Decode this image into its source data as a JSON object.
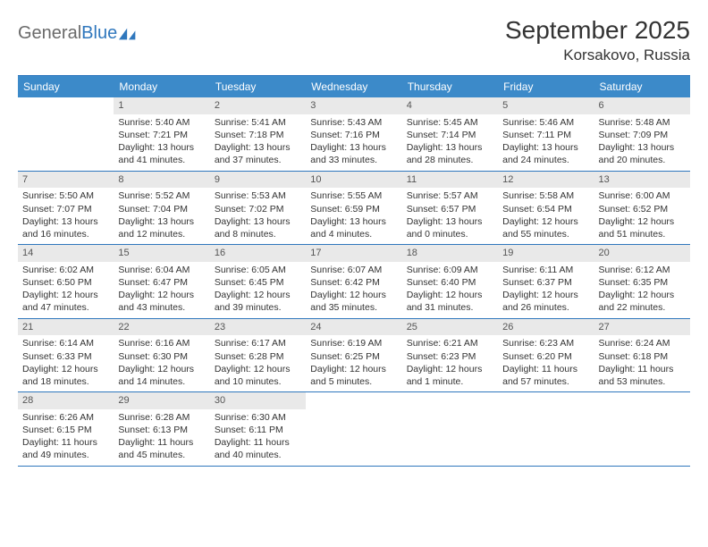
{
  "logo": {
    "part1": "General",
    "part2": "Blue"
  },
  "title": "September 2025",
  "location": "Korsakovo, Russia",
  "colors": {
    "accent": "#3c8ac9",
    "border": "#2f77bd",
    "daynum_bg": "#e9e9e9"
  },
  "dow": [
    "Sunday",
    "Monday",
    "Tuesday",
    "Wednesday",
    "Thursday",
    "Friday",
    "Saturday"
  ],
  "weeks": [
    [
      null,
      {
        "n": "1",
        "sr": "Sunrise: 5:40 AM",
        "ss": "Sunset: 7:21 PM",
        "d1": "Daylight: 13 hours",
        "d2": "and 41 minutes."
      },
      {
        "n": "2",
        "sr": "Sunrise: 5:41 AM",
        "ss": "Sunset: 7:18 PM",
        "d1": "Daylight: 13 hours",
        "d2": "and 37 minutes."
      },
      {
        "n": "3",
        "sr": "Sunrise: 5:43 AM",
        "ss": "Sunset: 7:16 PM",
        "d1": "Daylight: 13 hours",
        "d2": "and 33 minutes."
      },
      {
        "n": "4",
        "sr": "Sunrise: 5:45 AM",
        "ss": "Sunset: 7:14 PM",
        "d1": "Daylight: 13 hours",
        "d2": "and 28 minutes."
      },
      {
        "n": "5",
        "sr": "Sunrise: 5:46 AM",
        "ss": "Sunset: 7:11 PM",
        "d1": "Daylight: 13 hours",
        "d2": "and 24 minutes."
      },
      {
        "n": "6",
        "sr": "Sunrise: 5:48 AM",
        "ss": "Sunset: 7:09 PM",
        "d1": "Daylight: 13 hours",
        "d2": "and 20 minutes."
      }
    ],
    [
      {
        "n": "7",
        "sr": "Sunrise: 5:50 AM",
        "ss": "Sunset: 7:07 PM",
        "d1": "Daylight: 13 hours",
        "d2": "and 16 minutes."
      },
      {
        "n": "8",
        "sr": "Sunrise: 5:52 AM",
        "ss": "Sunset: 7:04 PM",
        "d1": "Daylight: 13 hours",
        "d2": "and 12 minutes."
      },
      {
        "n": "9",
        "sr": "Sunrise: 5:53 AM",
        "ss": "Sunset: 7:02 PM",
        "d1": "Daylight: 13 hours",
        "d2": "and 8 minutes."
      },
      {
        "n": "10",
        "sr": "Sunrise: 5:55 AM",
        "ss": "Sunset: 6:59 PM",
        "d1": "Daylight: 13 hours",
        "d2": "and 4 minutes."
      },
      {
        "n": "11",
        "sr": "Sunrise: 5:57 AM",
        "ss": "Sunset: 6:57 PM",
        "d1": "Daylight: 13 hours",
        "d2": "and 0 minutes."
      },
      {
        "n": "12",
        "sr": "Sunrise: 5:58 AM",
        "ss": "Sunset: 6:54 PM",
        "d1": "Daylight: 12 hours",
        "d2": "and 55 minutes."
      },
      {
        "n": "13",
        "sr": "Sunrise: 6:00 AM",
        "ss": "Sunset: 6:52 PM",
        "d1": "Daylight: 12 hours",
        "d2": "and 51 minutes."
      }
    ],
    [
      {
        "n": "14",
        "sr": "Sunrise: 6:02 AM",
        "ss": "Sunset: 6:50 PM",
        "d1": "Daylight: 12 hours",
        "d2": "and 47 minutes."
      },
      {
        "n": "15",
        "sr": "Sunrise: 6:04 AM",
        "ss": "Sunset: 6:47 PM",
        "d1": "Daylight: 12 hours",
        "d2": "and 43 minutes."
      },
      {
        "n": "16",
        "sr": "Sunrise: 6:05 AM",
        "ss": "Sunset: 6:45 PM",
        "d1": "Daylight: 12 hours",
        "d2": "and 39 minutes."
      },
      {
        "n": "17",
        "sr": "Sunrise: 6:07 AM",
        "ss": "Sunset: 6:42 PM",
        "d1": "Daylight: 12 hours",
        "d2": "and 35 minutes."
      },
      {
        "n": "18",
        "sr": "Sunrise: 6:09 AM",
        "ss": "Sunset: 6:40 PM",
        "d1": "Daylight: 12 hours",
        "d2": "and 31 minutes."
      },
      {
        "n": "19",
        "sr": "Sunrise: 6:11 AM",
        "ss": "Sunset: 6:37 PM",
        "d1": "Daylight: 12 hours",
        "d2": "and 26 minutes."
      },
      {
        "n": "20",
        "sr": "Sunrise: 6:12 AM",
        "ss": "Sunset: 6:35 PM",
        "d1": "Daylight: 12 hours",
        "d2": "and 22 minutes."
      }
    ],
    [
      {
        "n": "21",
        "sr": "Sunrise: 6:14 AM",
        "ss": "Sunset: 6:33 PM",
        "d1": "Daylight: 12 hours",
        "d2": "and 18 minutes."
      },
      {
        "n": "22",
        "sr": "Sunrise: 6:16 AM",
        "ss": "Sunset: 6:30 PM",
        "d1": "Daylight: 12 hours",
        "d2": "and 14 minutes."
      },
      {
        "n": "23",
        "sr": "Sunrise: 6:17 AM",
        "ss": "Sunset: 6:28 PM",
        "d1": "Daylight: 12 hours",
        "d2": "and 10 minutes."
      },
      {
        "n": "24",
        "sr": "Sunrise: 6:19 AM",
        "ss": "Sunset: 6:25 PM",
        "d1": "Daylight: 12 hours",
        "d2": "and 5 minutes."
      },
      {
        "n": "25",
        "sr": "Sunrise: 6:21 AM",
        "ss": "Sunset: 6:23 PM",
        "d1": "Daylight: 12 hours",
        "d2": "and 1 minute."
      },
      {
        "n": "26",
        "sr": "Sunrise: 6:23 AM",
        "ss": "Sunset: 6:20 PM",
        "d1": "Daylight: 11 hours",
        "d2": "and 57 minutes."
      },
      {
        "n": "27",
        "sr": "Sunrise: 6:24 AM",
        "ss": "Sunset: 6:18 PM",
        "d1": "Daylight: 11 hours",
        "d2": "and 53 minutes."
      }
    ],
    [
      {
        "n": "28",
        "sr": "Sunrise: 6:26 AM",
        "ss": "Sunset: 6:15 PM",
        "d1": "Daylight: 11 hours",
        "d2": "and 49 minutes."
      },
      {
        "n": "29",
        "sr": "Sunrise: 6:28 AM",
        "ss": "Sunset: 6:13 PM",
        "d1": "Daylight: 11 hours",
        "d2": "and 45 minutes."
      },
      {
        "n": "30",
        "sr": "Sunrise: 6:30 AM",
        "ss": "Sunset: 6:11 PM",
        "d1": "Daylight: 11 hours",
        "d2": "and 40 minutes."
      },
      null,
      null,
      null,
      null
    ]
  ]
}
